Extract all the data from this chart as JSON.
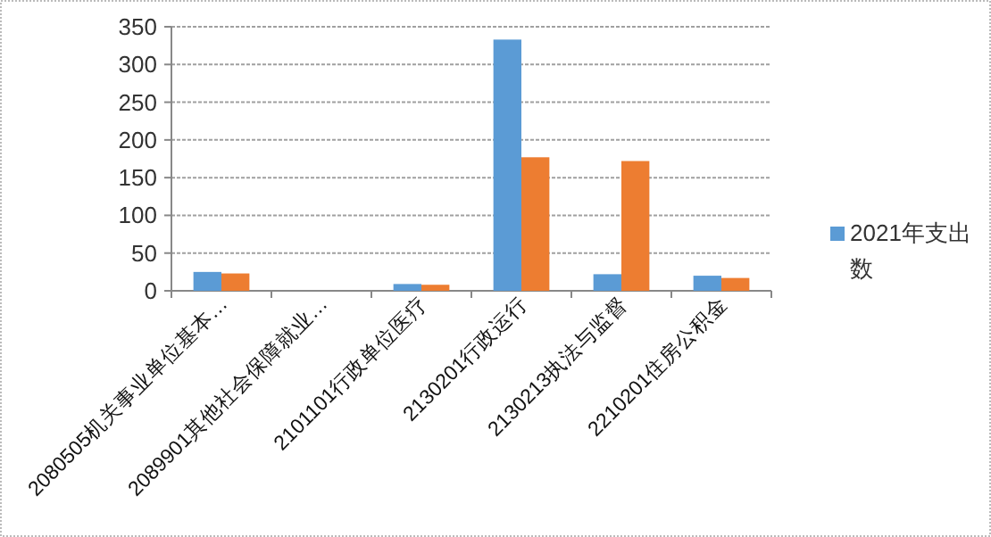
{
  "chart_data": {
    "type": "bar",
    "categories": [
      "2080505机关事业单位基本…",
      "2089901其他社会保障就业…",
      "2101101行政单位医疗",
      "2130201行政运行",
      "2130213执法与监督",
      "2210201住房公积金"
    ],
    "series": [
      {
        "name": "2021年支出数",
        "color": "#5b9bd5",
        "values": [
          25,
          0,
          9,
          333,
          22,
          20
        ]
      },
      {
        "color": "#ed7d31",
        "values": [
          23,
          0,
          8,
          177,
          172,
          17
        ]
      }
    ],
    "ylim": [
      0,
      350
    ],
    "yticks": [
      0,
      50,
      100,
      150,
      200,
      250,
      300,
      350
    ],
    "grid": "y",
    "legend": "right"
  }
}
